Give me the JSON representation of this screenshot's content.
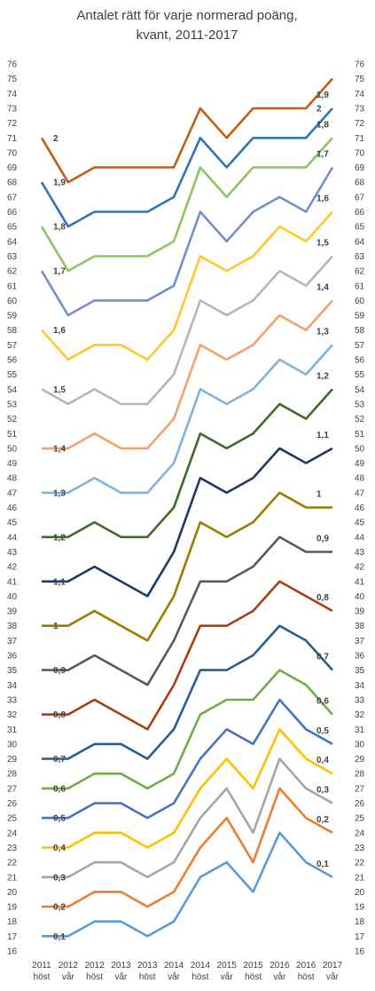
{
  "chart_data": {
    "type": "line",
    "title_lines": [
      "Antalet rätt för varje normerad poäng,",
      "kvant, 2011-2017"
    ],
    "xlabel": "",
    "ylabel": "",
    "ylim": [
      16,
      76
    ],
    "y_ticks": [
      16,
      17,
      18,
      19,
      20,
      21,
      22,
      23,
      24,
      25,
      26,
      27,
      28,
      29,
      30,
      31,
      32,
      33,
      34,
      35,
      36,
      37,
      38,
      39,
      40,
      41,
      42,
      43,
      44,
      45,
      46,
      47,
      48,
      49,
      50,
      51,
      52,
      53,
      54,
      55,
      56,
      57,
      58,
      59,
      60,
      61,
      62,
      63,
      64,
      65,
      66,
      67,
      68,
      69,
      70,
      71,
      72,
      73,
      74,
      75,
      76
    ],
    "grid": false,
    "legend": "none",
    "categories": [
      [
        "2011",
        "höst"
      ],
      [
        "2012",
        "vår"
      ],
      [
        "2012",
        "höst"
      ],
      [
        "2013",
        "vår"
      ],
      [
        "2013",
        "höst"
      ],
      [
        "2014",
        "vår"
      ],
      [
        "2014",
        "höst"
      ],
      [
        "2015",
        "vår"
      ],
      [
        "2015",
        "höst"
      ],
      [
        "2016",
        "vår"
      ],
      [
        "2016",
        "höst"
      ],
      [
        "2017",
        "vår"
      ]
    ],
    "series": [
      {
        "name": "2",
        "color": "#C55A11",
        "values": [
          71,
          68,
          69,
          69,
          69,
          69,
          73,
          71,
          73,
          73,
          73,
          75
        ]
      },
      {
        "name": "1,9",
        "color": "#2E75B6",
        "values": [
          68,
          65,
          66,
          66,
          66,
          67,
          71,
          69,
          71,
          71,
          71,
          73
        ]
      },
      {
        "name": "1,8",
        "color": "#8FC55E",
        "values": [
          65,
          62,
          63,
          63,
          63,
          64,
          69,
          67,
          69,
          69,
          69,
          71
        ]
      },
      {
        "name": "1,7",
        "color": "#6E8FD0",
        "values": [
          62,
          59,
          60,
          60,
          60,
          61,
          66,
          64,
          66,
          67,
          66,
          69
        ]
      },
      {
        "name": "1,6",
        "color": "#FFC72C",
        "values": [
          58,
          56,
          57,
          57,
          56,
          58,
          63,
          62,
          63,
          65,
          64,
          66
        ]
      },
      {
        "name": "1,5",
        "color": "#B5B5B5",
        "values": [
          54,
          53,
          54,
          53,
          53,
          55,
          60,
          59,
          60,
          62,
          61,
          63
        ]
      },
      {
        "name": "1,4",
        "color": "#F4A06B",
        "values": [
          50,
          50,
          51,
          50,
          50,
          52,
          57,
          56,
          57,
          59,
          58,
          60
        ]
      },
      {
        "name": "1,3",
        "color": "#7FB2E0",
        "values": [
          47,
          47,
          48,
          47,
          47,
          49,
          54,
          53,
          54,
          56,
          55,
          57
        ]
      },
      {
        "name": "1,2",
        "color": "#3D6B25",
        "values": [
          44,
          44,
          45,
          44,
          44,
          46,
          51,
          50,
          51,
          53,
          52,
          54
        ]
      },
      {
        "name": "1,1",
        "color": "#1F3864",
        "values": [
          41,
          41,
          42,
          41,
          40,
          43,
          48,
          47,
          48,
          50,
          49,
          50
        ]
      },
      {
        "name": "1",
        "color": "#9C7A00",
        "values": [
          38,
          38,
          39,
          38,
          37,
          40,
          45,
          44,
          45,
          47,
          46,
          46
        ]
      },
      {
        "name": "0,9",
        "color": "#595959",
        "values": [
          35,
          35,
          36,
          35,
          34,
          37,
          41,
          41,
          42,
          44,
          43,
          43
        ]
      },
      {
        "name": "0,8",
        "color": "#A5400F",
        "values": [
          32,
          32,
          33,
          32,
          31,
          34,
          38,
          38,
          39,
          41,
          40,
          39
        ]
      },
      {
        "name": "0,7",
        "color": "#255E91",
        "values": [
          29,
          29,
          30,
          30,
          29,
          31,
          35,
          35,
          36,
          38,
          37,
          35
        ]
      },
      {
        "name": "0,6",
        "color": "#70AD47",
        "values": [
          27,
          27,
          28,
          28,
          27,
          28,
          32,
          33,
          33,
          35,
          34,
          32
        ]
      },
      {
        "name": "0,5",
        "color": "#4472C4",
        "values": [
          25,
          25,
          26,
          26,
          25,
          26,
          29,
          31,
          30,
          33,
          31,
          30
        ]
      },
      {
        "name": "0,4",
        "color": "#FFC000",
        "values": [
          23,
          23,
          24,
          24,
          23,
          24,
          27,
          29,
          27,
          31,
          29,
          28
        ]
      },
      {
        "name": "0,3",
        "color": "#A5A5A5",
        "values": [
          21,
          21,
          22,
          22,
          21,
          22,
          25,
          27,
          24,
          29,
          27,
          26
        ]
      },
      {
        "name": "0,2",
        "color": "#ED7D31",
        "values": [
          19,
          19,
          20,
          20,
          19,
          20,
          23,
          25,
          22,
          27,
          25,
          24
        ]
      },
      {
        "name": "0,1",
        "color": "#5B9BD5",
        "values": [
          17,
          17,
          18,
          18,
          17,
          18,
          21,
          22,
          20,
          24,
          22,
          21
        ]
      }
    ]
  }
}
